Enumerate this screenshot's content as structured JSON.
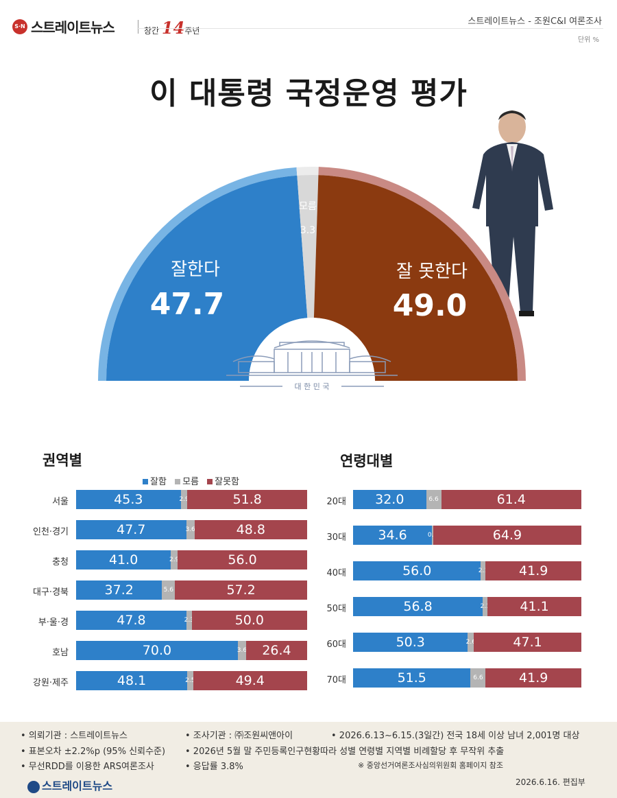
{
  "header": {
    "logo_mark": "S·N",
    "logo_text": "스트레이트뉴스",
    "anniversary_pre": "창간",
    "anniversary_num": "14",
    "anniversary_post": "주년",
    "source": "스트레이트뉴스 - 조원C&I 여론조사",
    "unit": "단위 %"
  },
  "title": "이 대통령 국정운영 평가",
  "emblem_text": "대 한 민 국",
  "colors": {
    "approve": "#2e80c9",
    "unknown": "#d8d8d8",
    "disapprove": "#8b3a10",
    "bar_disapprove": "#a4454d",
    "bar_unknown": "#b4b4b4"
  },
  "legend": {
    "approve": "잘함",
    "unknown": "모름",
    "disapprove": "잘못함"
  },
  "chart_data": [
    {
      "type": "pie",
      "title": "이 대통령 국정운영 평가",
      "categories": [
        "잘한다",
        "모름",
        "잘 못한다"
      ],
      "values": [
        47.7,
        3.3,
        49.0
      ],
      "labels": {
        "approve": "잘한다",
        "approve_val": "47.7",
        "unknown": "모름",
        "unknown_val": "3.3",
        "disapprove": "잘 못한다",
        "disapprove_val": "49.0"
      }
    },
    {
      "type": "bar",
      "title": "권역별",
      "categories": [
        "서울",
        "인천·경기",
        "충청",
        "대구·경북",
        "부·울·경",
        "호남",
        "강원·제주"
      ],
      "series": [
        {
          "name": "잘함",
          "values": [
            "45.3",
            "47.7",
            "41.0",
            "37.2",
            "47.8",
            "70.0",
            "48.1"
          ]
        },
        {
          "name": "모름",
          "values": [
            "2.9",
            "3.6",
            "2.9",
            "5.6",
            "2.3",
            "3.6",
            "2.5"
          ]
        },
        {
          "name": "잘못함",
          "values": [
            "51.8",
            "48.8",
            "56.0",
            "57.2",
            "50.0",
            "26.4",
            "49.4"
          ]
        }
      ]
    },
    {
      "type": "bar",
      "title": "연령대별",
      "categories": [
        "20대",
        "30대",
        "40대",
        "50대",
        "60대",
        "70대"
      ],
      "series": [
        {
          "name": "잘함",
          "values": [
            "32.0",
            "34.6",
            "56.0",
            "56.8",
            "50.3",
            "51.5"
          ]
        },
        {
          "name": "모름",
          "values": [
            "6.6",
            "0.5",
            "2.1",
            "2.1",
            "2.6",
            "6.6"
          ]
        },
        {
          "name": "잘못함",
          "values": [
            "61.4",
            "64.9",
            "41.9",
            "41.1",
            "47.1",
            "41.9"
          ]
        }
      ]
    }
  ],
  "footer": {
    "r1c1": "• 의뢰기관 : 스트레이트뉴스",
    "r1c2": "• 조사기관 : ㈜조원씨앤아이",
    "r1c3": "• 2026.6.13~6.15.(3일간) 전국 18세 이상 남녀 2,001명 대상",
    "r2c1": "• 표본오차 ±2.2%p (95% 신뢰수준)",
    "r2c2": "• 2026년 5월 말 주민등록인구현황따라 성별 연령별 지역별 비례할당 후 무작위 추출",
    "r3c1": "• 무선RDD를 이용한 ARS여론조사",
    "r3c2": "• 응답률 3.8%",
    "r3c3": "※ 중앙선거여론조사심의위원회 홈페이지 참조",
    "logo": "스트레이트뉴스",
    "date": "2026.6.16.  편집부"
  }
}
